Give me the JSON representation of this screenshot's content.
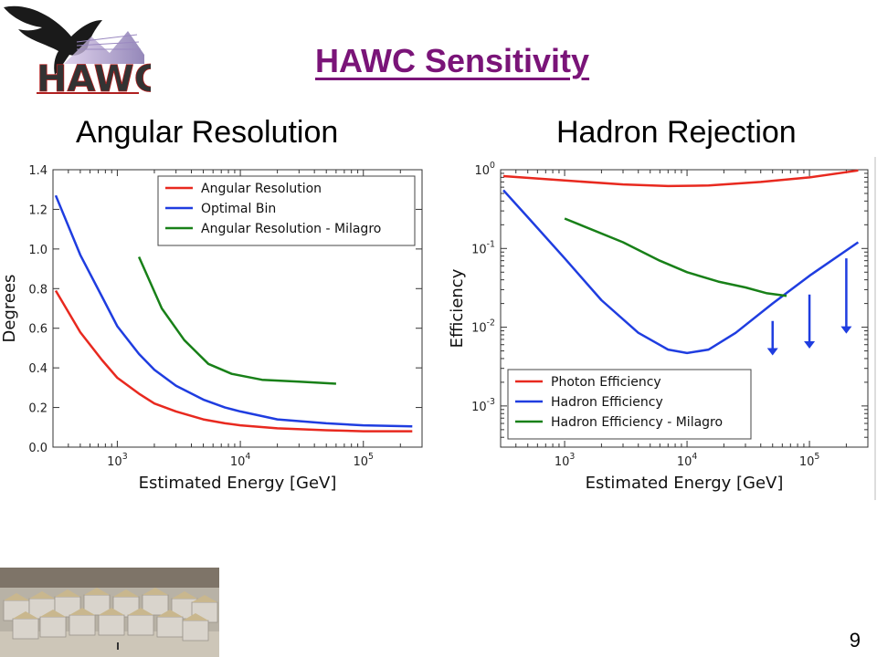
{
  "slide": {
    "title": "HAWC Sensitivity",
    "left_heading": "Angular Resolution",
    "right_heading": "Hadron Rejection",
    "page_number": "9",
    "logo_text": "HAWC"
  },
  "chart_data": [
    {
      "type": "line",
      "xlabel": "Estimated Energy [GeV]",
      "ylabel": "Degrees",
      "xscale": "log",
      "xlim": [
        300,
        300000
      ],
      "ylim": [
        0,
        1.4
      ],
      "xticks": [
        1000,
        10000,
        100000
      ],
      "xtick_labels": [
        "10^3",
        "10^4",
        "10^5"
      ],
      "yticks": [
        0,
        0.2,
        0.4,
        0.6,
        0.8,
        1.0,
        1.2,
        1.4
      ],
      "ytick_labels": [
        "0.0",
        "0.2",
        "0.4",
        "0.6",
        "0.8",
        "1.0",
        "1.2",
        "1.4"
      ],
      "legend_position": "top-right",
      "series": [
        {
          "name": "Angular Resolution",
          "color": "#e8291f",
          "x": [
            316,
            500,
            750,
            1000,
            1500,
            2000,
            3000,
            5000,
            7500,
            10000,
            20000,
            50000,
            100000,
            250000
          ],
          "y": [
            0.79,
            0.58,
            0.44,
            0.35,
            0.27,
            0.22,
            0.18,
            0.14,
            0.12,
            0.11,
            0.095,
            0.085,
            0.08,
            0.08
          ]
        },
        {
          "name": "Optimal Bin",
          "color": "#1f3de0",
          "x": [
            316,
            500,
            750,
            1000,
            1500,
            2000,
            3000,
            5000,
            7500,
            10000,
            20000,
            50000,
            100000,
            250000
          ],
          "y": [
            1.27,
            0.97,
            0.76,
            0.61,
            0.47,
            0.39,
            0.31,
            0.24,
            0.2,
            0.18,
            0.14,
            0.12,
            0.11,
            0.105
          ]
        },
        {
          "name": "Angular Resolution - Milagro",
          "color": "#188018",
          "x": [
            1500,
            2300,
            3500,
            5500,
            8500,
            15000,
            30000,
            60000
          ],
          "y": [
            0.96,
            0.7,
            0.54,
            0.42,
            0.37,
            0.34,
            0.33,
            0.32
          ]
        }
      ]
    },
    {
      "type": "line",
      "xlabel": "Estimated Energy [GeV]",
      "ylabel": "Efficiency",
      "xscale": "log",
      "yscale": "log",
      "xlim": [
        300,
        300000
      ],
      "ylim": [
        0.0003,
        1.0
      ],
      "xticks": [
        1000,
        10000,
        100000
      ],
      "xtick_labels": [
        "10^3",
        "10^4",
        "10^5"
      ],
      "yticks": [
        0.001,
        0.01,
        0.1,
        1
      ],
      "ytick_labels": [
        "10^-3",
        "10^-2",
        "10^-1",
        "10^0"
      ],
      "legend_position": "bottom-left",
      "series": [
        {
          "name": "Photon Efficiency",
          "color": "#e8291f",
          "x": [
            316,
            1000,
            3000,
            7000,
            15000,
            40000,
            100000,
            250000
          ],
          "y": [
            0.83,
            0.73,
            0.65,
            0.62,
            0.63,
            0.7,
            0.8,
            0.98
          ]
        },
        {
          "name": "Hadron Efficiency",
          "color": "#1f3de0",
          "x": [
            316,
            500,
            1000,
            2000,
            4000,
            7000,
            10000,
            15000,
            25000,
            50000,
            100000,
            250000
          ],
          "y": [
            0.55,
            0.25,
            0.075,
            0.022,
            0.0085,
            0.0052,
            0.0047,
            0.0052,
            0.0085,
            0.02,
            0.045,
            0.12
          ]
        },
        {
          "name": "Hadron Efficiency - Milagro",
          "color": "#188018",
          "x": [
            1000,
            3000,
            6000,
            10000,
            18000,
            30000,
            45000,
            65000
          ],
          "y": [
            0.24,
            0.12,
            0.07,
            0.05,
            0.038,
            0.032,
            0.027,
            0.025
          ]
        }
      ],
      "upper_limits": {
        "color": "#1f3de0",
        "x": [
          50000,
          100000,
          200000
        ],
        "from": [
          0.012,
          0.026,
          0.075
        ],
        "to": [
          0.0045,
          0.0055,
          0.0085
        ]
      }
    }
  ]
}
